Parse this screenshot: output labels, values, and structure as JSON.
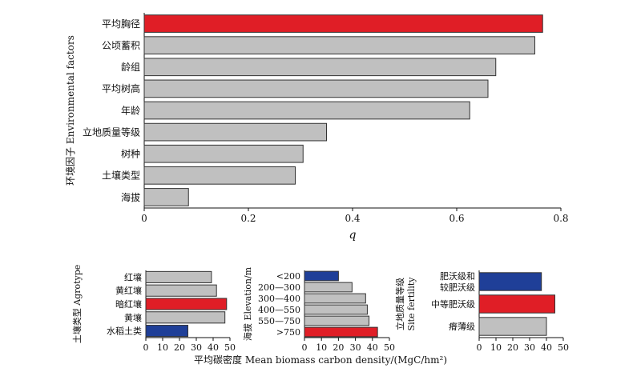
{
  "colors": {
    "default_bar": "#c0c0c0",
    "highlight_red": "#e01e26",
    "highlight_blue": "#1f3f98",
    "axis": "#111111"
  },
  "chart_data": [
    {
      "id": "main",
      "type": "bar",
      "orientation": "horizontal",
      "ylabel": "环境因子 Environmental factors",
      "xlabel": "q",
      "xlim": [
        0,
        0.8
      ],
      "xticks": [
        "0",
        "0.2",
        "0.4",
        "0.6",
        "0.8"
      ],
      "categories": [
        "平均胸径",
        "公顷蓄积",
        "龄组",
        "平均树高",
        "年龄",
        "立地质量等级",
        "树种",
        "土壤类型",
        "海拔"
      ],
      "values": [
        0.765,
        0.75,
        0.675,
        0.66,
        0.625,
        0.35,
        0.305,
        0.29,
        0.085
      ],
      "highlight": [
        "red",
        "none",
        "none",
        "none",
        "none",
        "none",
        "none",
        "none",
        "none"
      ]
    },
    {
      "id": "agrotype",
      "type": "bar",
      "orientation": "horizontal",
      "ylabel": "土壤类型 Agrotype",
      "xlim": [
        0,
        50
      ],
      "xticks": [
        "0",
        "10",
        "20",
        "30",
        "40",
        "50"
      ],
      "categories": [
        "红壤",
        "黄红壤",
        "暗红壤",
        "黄壤",
        "水稻土类"
      ],
      "values": [
        39,
        42,
        48,
        47,
        25
      ],
      "highlight": [
        "none",
        "none",
        "red",
        "none",
        "blue"
      ]
    },
    {
      "id": "elevation",
      "type": "bar",
      "orientation": "horizontal",
      "ylabel": "海拔 Elevation/m",
      "xlim": [
        0,
        50
      ],
      "xticks": [
        "0",
        "10",
        "20",
        "30",
        "40",
        "50"
      ],
      "categories": [
        "<200",
        "200—300",
        "300—400",
        "400—550",
        "550—750",
        ">750"
      ],
      "values": [
        20,
        28,
        36,
        37,
        38,
        43
      ],
      "highlight": [
        "blue",
        "none",
        "none",
        "none",
        "none",
        "red"
      ]
    },
    {
      "id": "fertility",
      "type": "bar",
      "orientation": "horizontal",
      "ylabel": [
        "立地质量等级",
        "Site fertility"
      ],
      "xlim": [
        0,
        50
      ],
      "xticks": [
        "0",
        "10",
        "20",
        "30",
        "40",
        "50"
      ],
      "categories": [
        [
          "肥沃级和",
          "较肥沃级"
        ],
        [
          "中等肥沃级"
        ],
        [
          "瘠薄级"
        ]
      ],
      "values": [
        37,
        45,
        40
      ],
      "highlight": [
        "blue",
        "red",
        "none"
      ]
    }
  ],
  "shared_xlabel": "平均碳密度 Mean biomass carbon density/(MgC/hm²)"
}
